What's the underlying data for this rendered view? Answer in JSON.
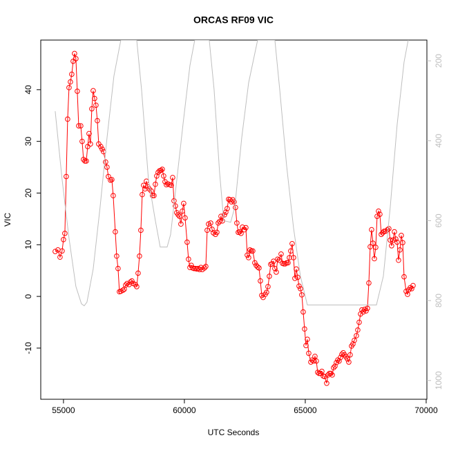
{
  "chart_data": {
    "type": "line",
    "title": "ORCAS RF09 VIC",
    "xlabel": "UTC Seconds",
    "ylabel": "VIC",
    "xlim": [
      54060,
      70030
    ],
    "xticks": [
      55000,
      60000,
      65000,
      70000
    ],
    "ylim": [
      -19.9,
      49.6
    ],
    "yticks": [
      -10,
      0,
      10,
      20,
      30,
      40
    ],
    "y2lim": [
      1047,
      148
    ],
    "y2ticks": [
      200,
      400,
      600,
      800,
      1000
    ],
    "series": [
      {
        "color": "#ff0000",
        "marker": "circle",
        "x": [
          54657,
          54771,
          54857,
          54943,
          55000,
          55057,
          55114,
          55171,
          55229,
          55286,
          55343,
          55400,
          55457,
          55514,
          55571,
          55629,
          55714,
          55771,
          55829,
          55886,
          55943,
          56000,
          56057,
          56114,
          56171,
          56229,
          56286,
          56343,
          56400,
          56457,
          56543,
          56600,
          56657,
          56743,
          56800,
          56857,
          56943,
          57000,
          57057,
          57143,
          57200,
          57257,
          57314,
          57371,
          57457,
          57514,
          57571,
          57629,
          57714,
          57771,
          57829,
          57886,
          57971,
          58029,
          58086,
          58143,
          58200,
          58257,
          58314,
          58371,
          58429,
          58486,
          58543,
          58629,
          58686,
          58743,
          58800,
          58857,
          58914,
          58971,
          59029,
          59086,
          59143,
          59200,
          59257,
          59314,
          59400,
          59457,
          59514,
          59571,
          59629,
          59686,
          59743,
          59800,
          59857,
          59914,
          59971,
          60029,
          60114,
          60171,
          60229,
          60286,
          60343,
          60400,
          60457,
          60514,
          60571,
          60629,
          60686,
          60743,
          60829,
          60886,
          60943,
          61000,
          61086,
          61143,
          61200,
          61286,
          61343,
          61400,
          61457,
          61514,
          61571,
          61657,
          61714,
          61771,
          61829,
          61886,
          61943,
          62000,
          62057,
          62114,
          62171,
          62229,
          62286,
          62343,
          62400,
          62486,
          62543,
          62600,
          62657,
          62714,
          62771,
          62829,
          62914,
          62971,
          63029,
          63086,
          63143,
          63200,
          63257,
          63343,
          63400,
          63457,
          63514,
          63571,
          63629,
          63686,
          63743,
          63800,
          63857,
          63914,
          64000,
          64057,
          64114,
          64171,
          64229,
          64286,
          64343,
          64400,
          64457,
          64514,
          64571,
          64629,
          64686,
          64743,
          64800,
          64857,
          64914,
          64971,
          65029,
          65086,
          65143,
          65229,
          65286,
          65343,
          65400,
          65457,
          65514,
          65571,
          65629,
          65686,
          65743,
          65800,
          65886,
          65943,
          66000,
          66057,
          66114,
          66171,
          66229,
          66286,
          66343,
          66400,
          66457,
          66514,
          66571,
          66629,
          66686,
          66743,
          66800,
          66857,
          66914,
          66971,
          67029,
          67114,
          67171,
          67229,
          67286,
          67343,
          67400,
          67457,
          67514,
          67571,
          67629,
          67686,
          67743,
          67800,
          67857,
          67914,
          67971,
          68029,
          68086,
          68143,
          68200,
          68257,
          68314,
          68400,
          68457,
          68514,
          68571,
          68629,
          68686,
          68743,
          68800,
          68857,
          68914,
          68971,
          69029,
          69086,
          69171,
          69229,
          69286,
          69343,
          69400,
          69457
        ],
        "values": [
          8.7,
          9,
          7.6,
          8.8,
          11,
          12.2,
          23.2,
          34.3,
          40.4,
          41.5,
          43,
          45.5,
          47,
          46,
          39.7,
          33,
          33,
          30,
          26.5,
          26.2,
          26.2,
          29,
          31.5,
          29.5,
          36.3,
          39.8,
          38.3,
          37,
          34,
          29.5,
          29,
          28.5,
          28,
          26,
          25,
          23.2,
          22.5,
          22.6,
          19.5,
          12.5,
          7.8,
          5.4,
          0.9,
          1,
          1.2,
          1.4,
          2.2,
          2.5,
          2.3,
          2.8,
          3,
          2.5,
          2.3,
          1.9,
          4.5,
          7.8,
          12.8,
          19.7,
          21.5,
          20.8,
          22.3,
          21.2,
          20.8,
          20.4,
          19.5,
          19.5,
          21.7,
          23.3,
          24,
          24.3,
          24.4,
          24.6,
          23.3,
          22.2,
          21.6,
          21.8,
          21.6,
          21.5,
          23,
          18.5,
          17.5,
          16.2,
          15.8,
          15.5,
          14,
          16.5,
          18,
          15.2,
          10.5,
          7.2,
          5.6,
          6,
          5.5,
          5.4,
          5.4,
          5.3,
          5.4,
          5.2,
          5.6,
          5.2,
          5.5,
          5.8,
          12.8,
          14,
          14.2,
          13,
          12.3,
          12,
          12.4,
          14.2,
          14.5,
          15.5,
          14.6,
          15.8,
          16.3,
          17,
          18.8,
          18.7,
          18.3,
          18.7,
          18.3,
          17.2,
          14.2,
          12.4,
          12.5,
          12.2,
          13.4,
          12.9,
          13.3,
          8,
          7.5,
          9,
          8.8,
          8.8,
          6.5,
          6,
          5.7,
          5.5,
          3,
          0.2,
          -0.2,
          0.4,
          0.8,
          1.9,
          3.9,
          6.2,
          6.3,
          6.8,
          5.4,
          4.7,
          7.2,
          7,
          8.2,
          6.4,
          6.3,
          6.3,
          6.5,
          6.5,
          7.5,
          8.8,
          10.2,
          7.5,
          3.5,
          5.3,
          3.7,
          2,
          1.5,
          0.3,
          -3,
          -6.3,
          -9.5,
          -8.3,
          -11,
          -12.7,
          -12.3,
          -12.5,
          -11.6,
          -12.5,
          -14.7,
          -14.9,
          -14.9,
          -14.5,
          -15.4,
          -15.5,
          -16.8,
          -15.2,
          -14.9,
          -14.9,
          -15.2,
          -13.8,
          -13.5,
          -12.8,
          -12.3,
          -12.5,
          -11.8,
          -11.2,
          -10.9,
          -11.3,
          -11.7,
          -12.1,
          -12.7,
          -11.3,
          -9.6,
          -9.2,
          -8.5,
          -7.6,
          -6.5,
          -5,
          -3.4,
          -2.6,
          -3,
          -2.5,
          -2.8,
          -2.3,
          2.6,
          9.6,
          12.9,
          10.3,
          7.3,
          9.5,
          15.5,
          16.5,
          15.9,
          12,
          12.3,
          12.6,
          12.6,
          12.9,
          13.1,
          10.9,
          9.8,
          10.9,
          12.5,
          11.1,
          10.5,
          7,
          9,
          11.8,
          10.4,
          3.8,
          1,
          0.4,
          1.3,
          1.7,
          1.5,
          2.1
        ]
      },
      {
        "color": "#bebebe",
        "axis": "y2",
        "x": [
          54657,
          54943,
          55229,
          55514,
          55743,
          55857,
          55971,
          56229,
          56514,
          56800,
          57086,
          57371,
          58029,
          58229,
          58514,
          58800,
          59000,
          59286,
          59429,
          59657,
          59943,
          60229,
          60429,
          61029,
          61229,
          61457,
          61629,
          61914,
          62086,
          62371,
          62657,
          63029,
          63743,
          63943,
          64229,
          64514,
          64800,
          65086,
          65371,
          67943,
          68229,
          68514,
          68800,
          69086,
          69257
        ],
        "values": [
          326,
          497,
          644,
          765,
          808,
          813,
          804,
          721,
          566,
          393,
          238,
          148,
          148,
          272,
          497,
          600,
          666,
          666,
          635,
          514,
          359,
          212,
          148,
          148,
          272,
          480,
          600,
          604,
          566,
          393,
          255,
          148,
          148,
          272,
          463,
          618,
          739,
          811,
          811,
          811,
          739,
          566,
          359,
          203,
          148
        ]
      }
    ]
  }
}
